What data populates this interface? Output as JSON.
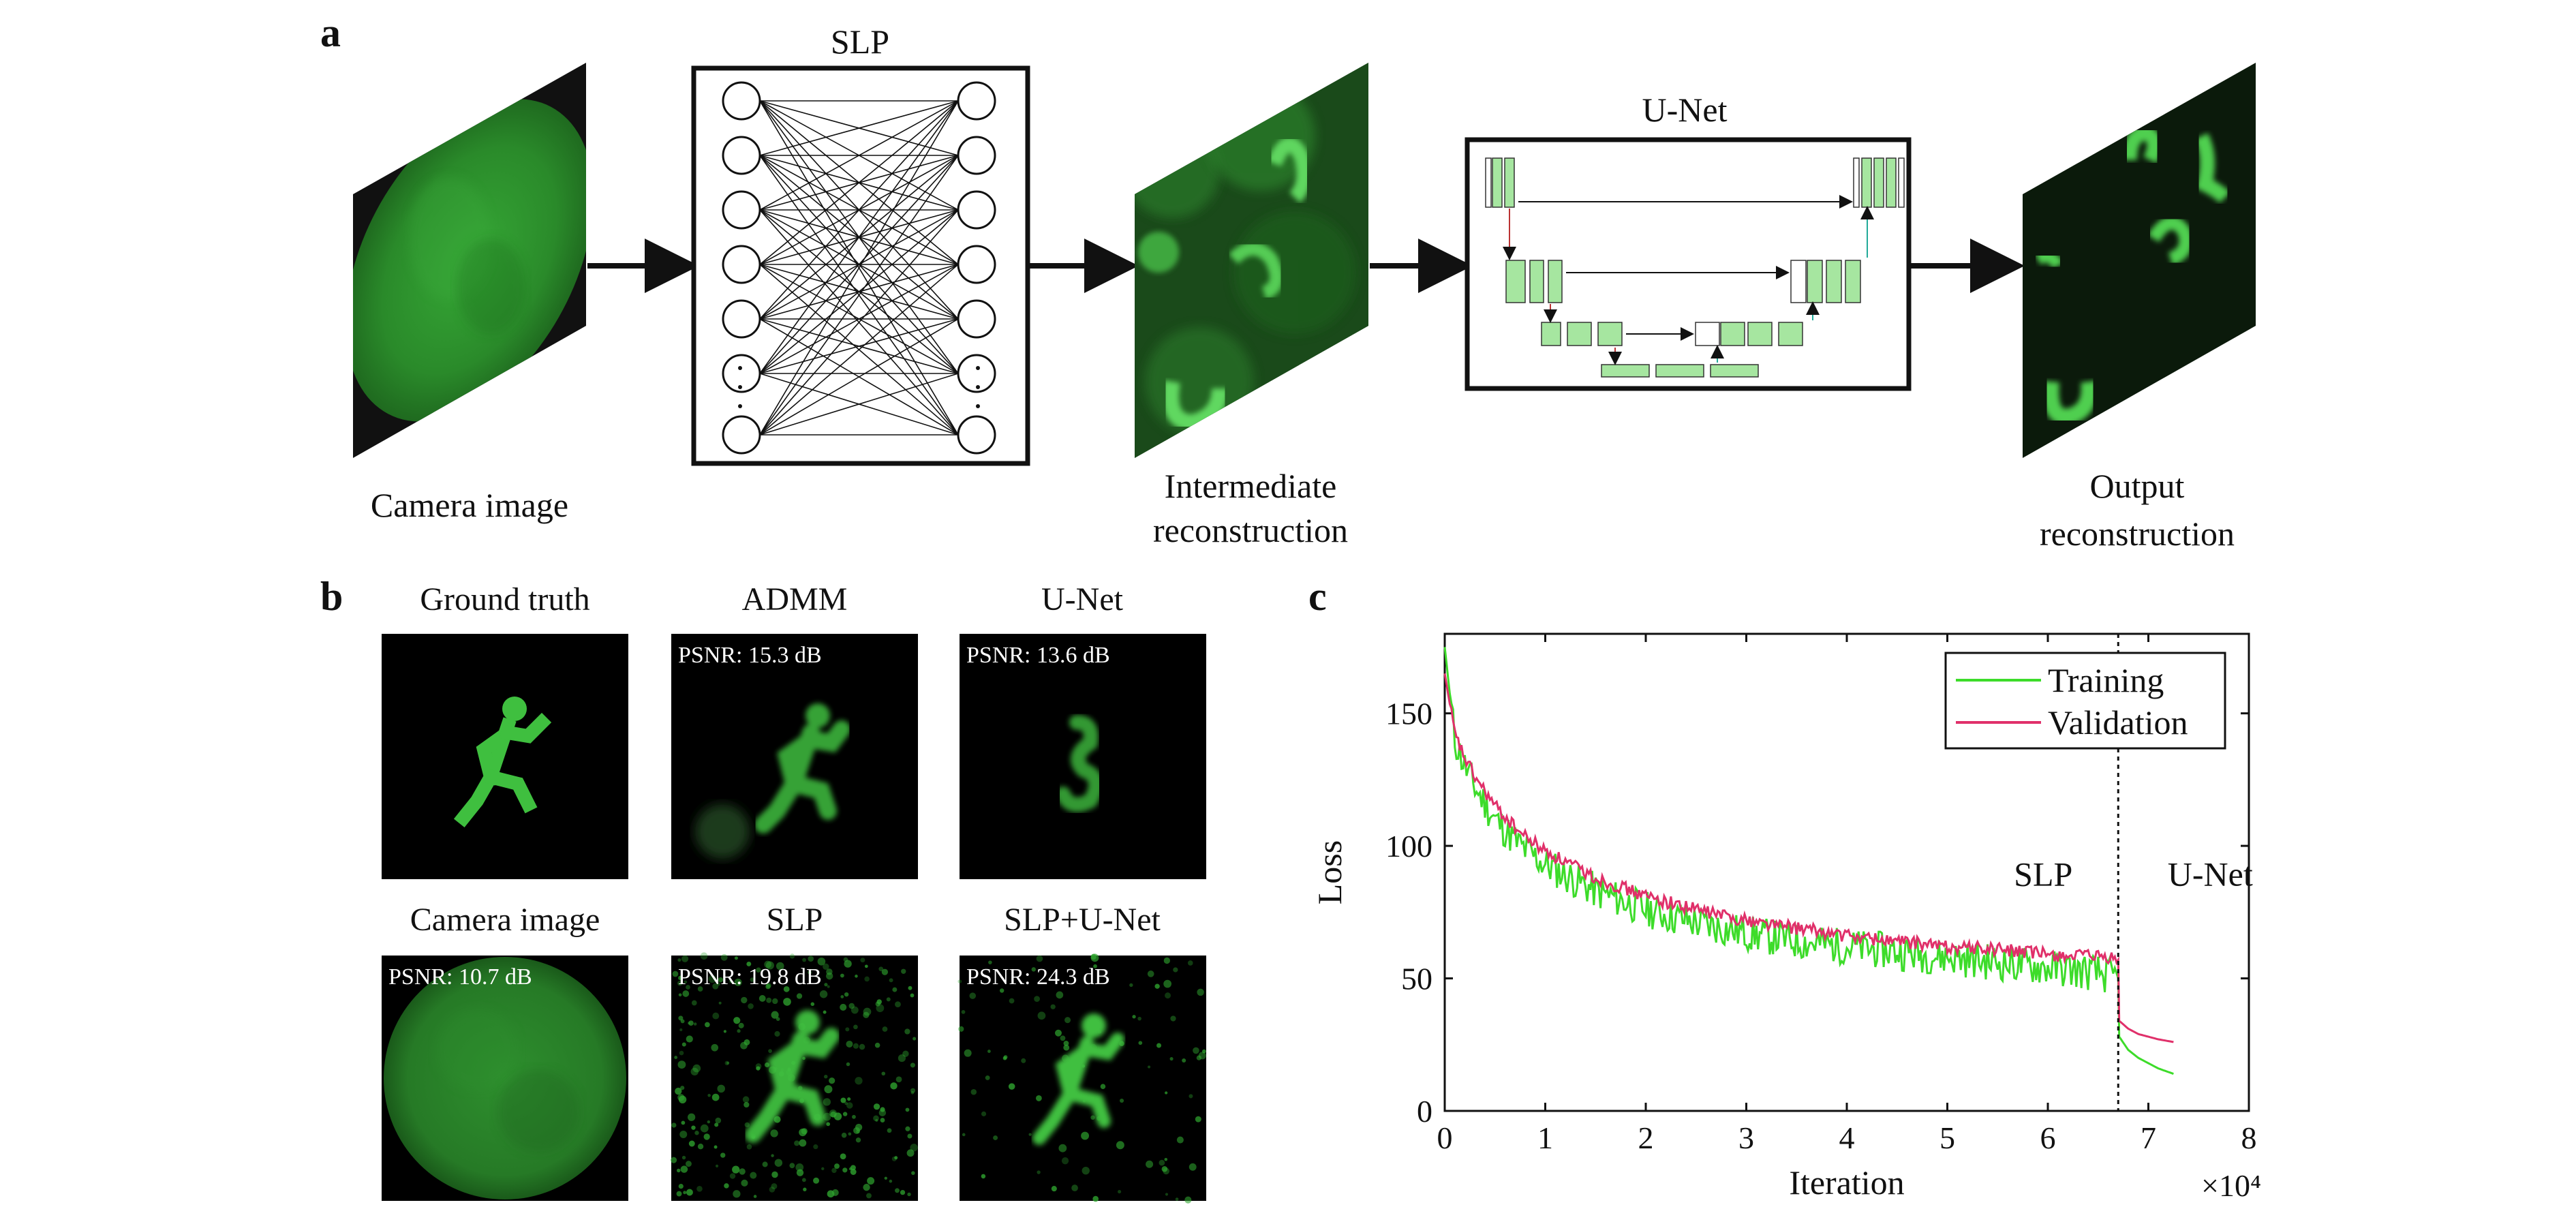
{
  "panel_labels": {
    "a": "a",
    "b": "b",
    "c": "c"
  },
  "panel_a": {
    "camera_image_label": "Camera image",
    "slp_title": "SLP",
    "slp_ellipsis": "·\n·\n·",
    "intermediate_label_line1": "Intermediate",
    "intermediate_label_line2": "reconstruction",
    "unet_title": "U-Net",
    "output_label_line1": "Output",
    "output_label_line2": "reconstruction"
  },
  "panel_b": {
    "tiles": [
      {
        "title": "Ground truth",
        "psnr": ""
      },
      {
        "title": "ADMM",
        "psnr": "PSNR: 15.3 dB"
      },
      {
        "title": "U-Net",
        "psnr": "PSNR: 13.6 dB"
      },
      {
        "title": "Camera image",
        "psnr": "PSNR: 10.7 dB"
      },
      {
        "title": "SLP",
        "psnr": "PSNR: 19.8 dB"
      },
      {
        "title": "SLP+U-Net",
        "psnr": "PSNR: 24.3 dB"
      }
    ]
  },
  "colors": {
    "training": "#3ddc2a",
    "validation": "#e0306a",
    "figure_green": "#3fbf3f",
    "unet_block": "#a6e6a0"
  },
  "chart_data": {
    "type": "line",
    "xlabel": "Iteration",
    "ylabel": "Loss",
    "x_multiplier": "×10⁴",
    "xlim": [
      0,
      8
    ],
    "ylim": [
      0,
      180
    ],
    "xticks": [
      0,
      1,
      2,
      3,
      4,
      5,
      6,
      7,
      8
    ],
    "yticks": [
      0,
      50,
      100,
      150
    ],
    "legend_position": "top-right",
    "divider_x": 6.7,
    "annotations": [
      "SLP",
      "U-Net"
    ],
    "series": [
      {
        "name": "Training",
        "x": [
          0,
          0.1,
          0.2,
          0.3,
          0.5,
          0.75,
          1.0,
          1.5,
          2.0,
          2.5,
          3.0,
          3.5,
          4.0,
          4.5,
          5.0,
          5.5,
          6.0,
          6.5,
          6.7,
          6.71,
          6.8,
          6.9,
          7.0,
          7.1,
          7.25
        ],
        "y": [
          175,
          140,
          130,
          122,
          110,
          100,
          93,
          83,
          76,
          71,
          67,
          64,
          62,
          60,
          58,
          56,
          54,
          52,
          50,
          28,
          23,
          20,
          18,
          16,
          14
        ]
      },
      {
        "name": "Validation",
        "x": [
          0,
          0.1,
          0.2,
          0.3,
          0.5,
          0.75,
          1.0,
          1.5,
          2.0,
          2.5,
          3.0,
          3.5,
          4.0,
          4.5,
          5.0,
          5.5,
          6.0,
          6.5,
          6.7,
          6.71,
          6.8,
          6.9,
          7.0,
          7.1,
          7.25
        ],
        "y": [
          165,
          142,
          133,
          126,
          115,
          105,
          98,
          88,
          81,
          76,
          72,
          69,
          66,
          64,
          62,
          61,
          59,
          58,
          57,
          34,
          31,
          29,
          28,
          27,
          26
        ]
      }
    ]
  }
}
